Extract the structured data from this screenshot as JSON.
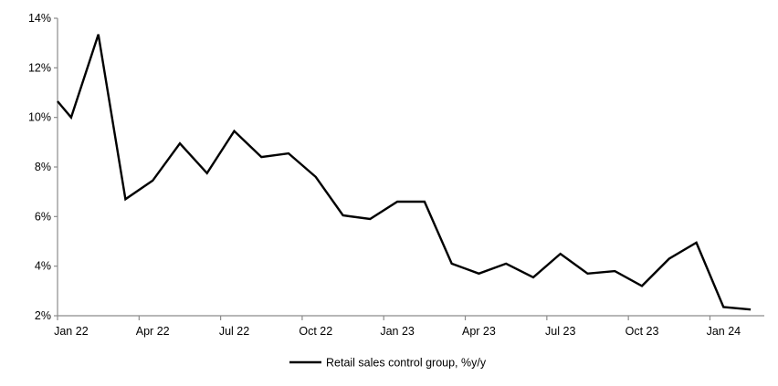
{
  "figure": {
    "background_color": "#ffffff",
    "axis_color": "#8c8c8c",
    "line_color": "#000000",
    "text_color": "#000000"
  },
  "chart_data": {
    "type": "line",
    "title": "",
    "xlabel": "",
    "ylabel": "",
    "ylim": [
      2,
      14
    ],
    "grid": false,
    "legend_position": "bottom-center",
    "y_tick_values": [
      2,
      4,
      6,
      8,
      10,
      12,
      14
    ],
    "y_tick_labels": [
      "2%",
      "4%",
      "6%",
      "8%",
      "10%",
      "12%",
      "14%"
    ],
    "x_tick_labels": [
      "Jan 22",
      "Apr 22",
      "Jul 22",
      "Oct 22",
      "Jan 23",
      "Apr 23",
      "Jul 23",
      "Oct 23",
      "Jan 24"
    ],
    "categories": [
      "Jan 22",
      "Feb 22",
      "Mar 22",
      "Apr 22",
      "May 22",
      "Jun 22",
      "Jul 22",
      "Aug 22",
      "Sep 22",
      "Oct 22",
      "Nov 22",
      "Dec 22",
      "Jan 23",
      "Feb 23",
      "Mar 23",
      "Apr 23",
      "May 23",
      "Jun 23",
      "Jul 23",
      "Aug 23",
      "Sep 23",
      "Oct 23",
      "Nov 23",
      "Dec 23",
      "Jan 24",
      "Feb 24"
    ],
    "series": [
      {
        "name": "Retail sales control group, %y/y",
        "color": "#000000",
        "values": [
          10.0,
          13.35,
          6.7,
          7.45,
          8.95,
          7.75,
          9.45,
          8.4,
          8.55,
          7.6,
          6.05,
          5.9,
          6.6,
          6.6,
          4.1,
          3.7,
          4.1,
          3.55,
          4.5,
          3.7,
          3.8,
          3.2,
          4.3,
          4.95,
          2.35,
          2.25
        ]
      }
    ],
    "lead_in_point": {
      "category": "Dec 21",
      "value": 11.3,
      "note": "segment partially visible, clipped at y-axis"
    }
  }
}
